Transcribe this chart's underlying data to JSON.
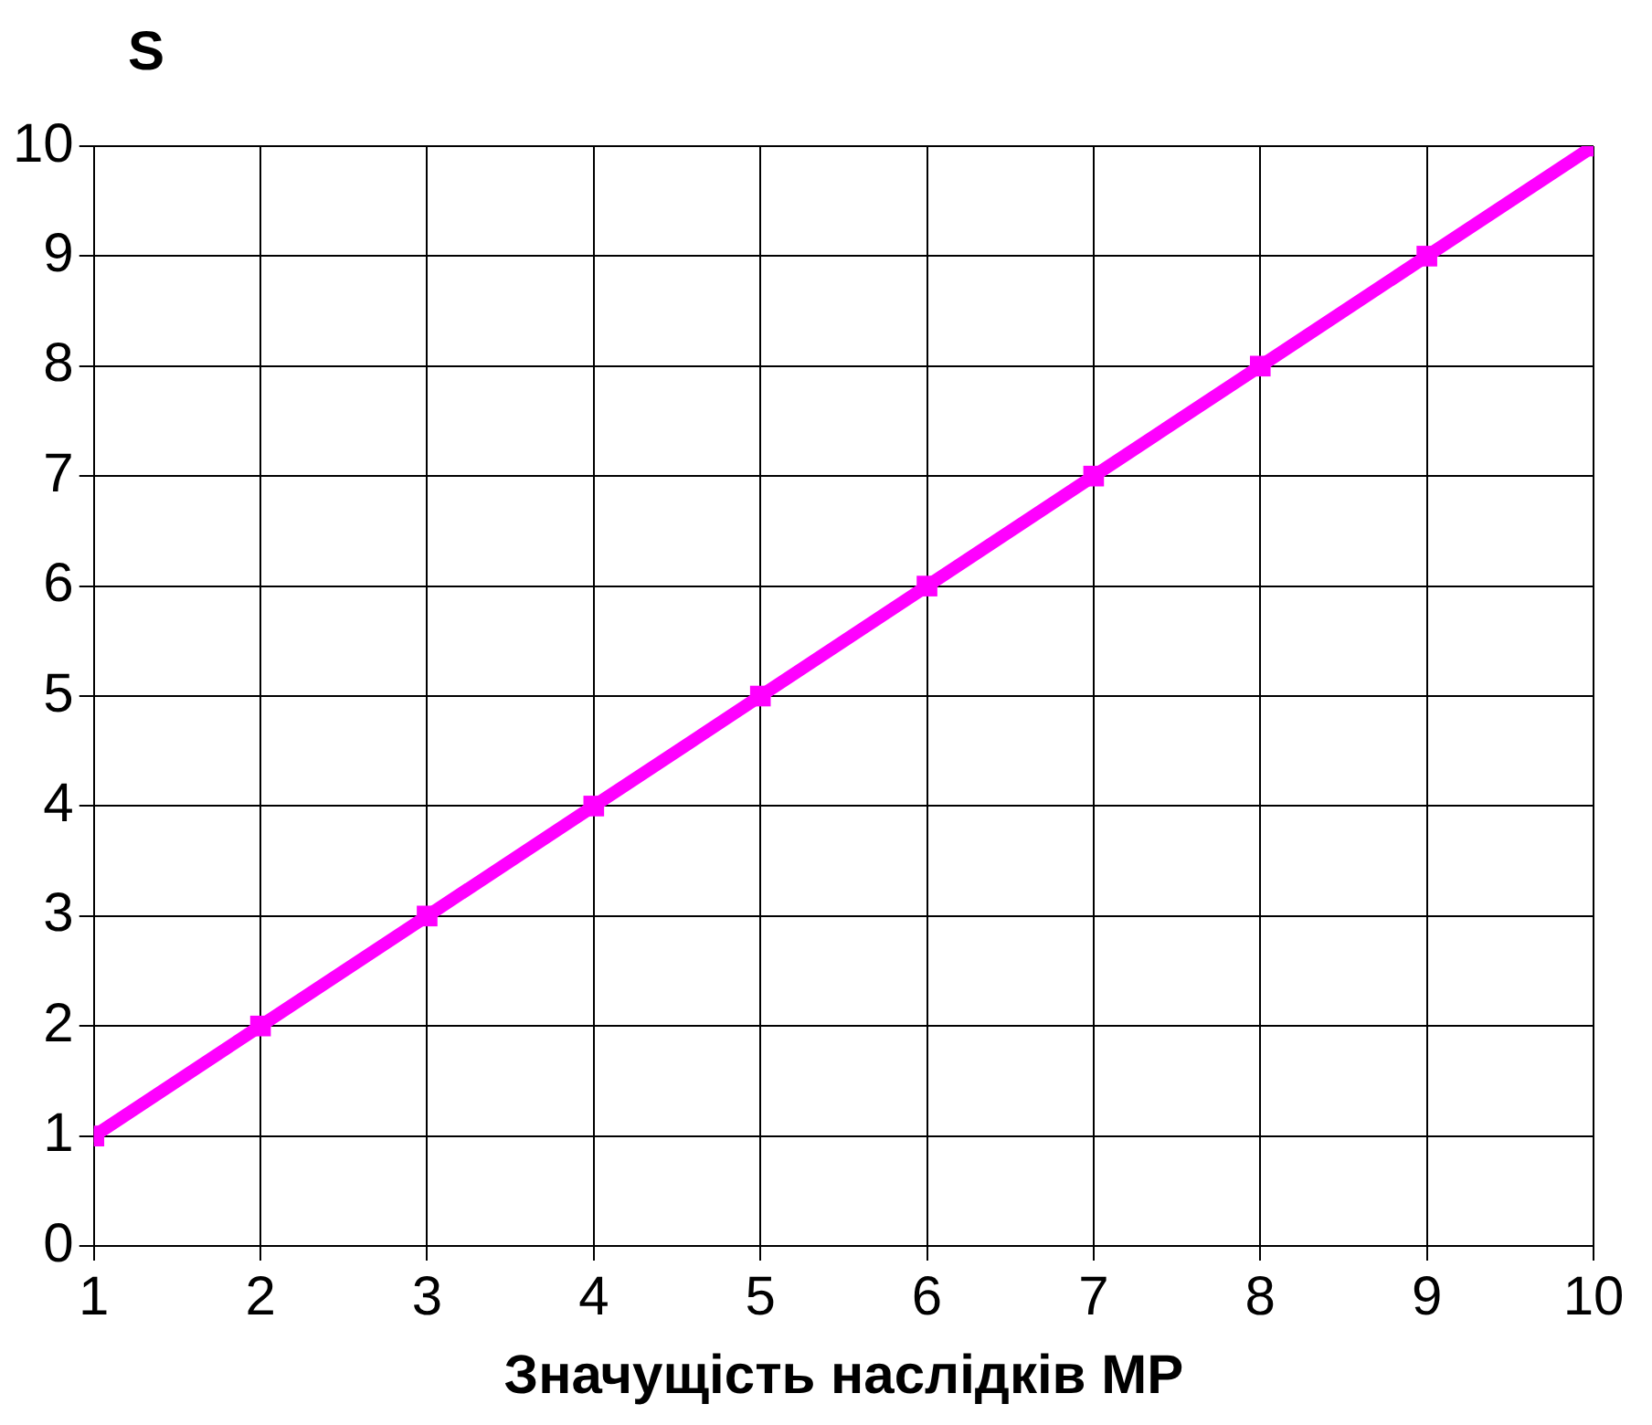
{
  "chart_data": {
    "type": "line",
    "ylabel": "S",
    "xlabel": "Значущість наслідків МР",
    "x": [
      1,
      2,
      3,
      4,
      5,
      6,
      7,
      8,
      9,
      10
    ],
    "series": [
      {
        "color": "#ff00ff",
        "values": [
          1,
          2,
          3,
          4,
          5,
          6,
          7,
          8,
          9,
          10
        ]
      }
    ],
    "xlim": [
      1,
      10
    ],
    "xticks": [
      1,
      2,
      3,
      4,
      5,
      6,
      7,
      8,
      9,
      10
    ],
    "ylim": [
      0,
      10
    ],
    "yticks": [
      0,
      1,
      2,
      3,
      4,
      5,
      6,
      7,
      8,
      9,
      10
    ],
    "grid": true,
    "legend": false,
    "marker": "square",
    "line_style": "solid"
  }
}
